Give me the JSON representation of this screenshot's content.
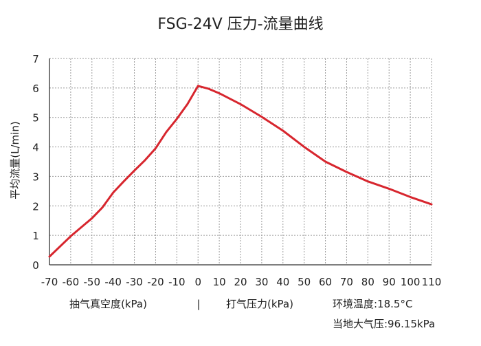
{
  "chart_data": {
    "type": "line",
    "title": "FSG-24V 压力-流量曲线",
    "ylabel": "平均流量(L/min)",
    "x_ticks": [
      "-70",
      "-60",
      "-50",
      "-40",
      "-30",
      "-20",
      "-10",
      "0",
      "10",
      "20",
      "30",
      "40",
      "50",
      "60",
      "70",
      "80",
      "90",
      "100",
      "110"
    ],
    "y_ticks": [
      "0",
      "1",
      "2",
      "3",
      "4",
      "5",
      "6",
      "7"
    ],
    "xlim": [
      -70,
      110
    ],
    "ylim": [
      0,
      7
    ],
    "grid": true,
    "line_color": "#d7262e",
    "series": [
      {
        "x": [
          -70,
          -60,
          -50,
          -45,
          -40,
          -35,
          -30,
          -25,
          -20,
          -15,
          -10,
          -5,
          0,
          5,
          10,
          20,
          30,
          40,
          50,
          60,
          70,
          80,
          90,
          100,
          110
        ],
        "y": [
          0.28,
          0.97,
          1.58,
          1.95,
          2.45,
          2.83,
          3.2,
          3.55,
          3.95,
          4.5,
          4.95,
          5.45,
          6.07,
          5.97,
          5.82,
          5.45,
          5.02,
          4.55,
          4.0,
          3.5,
          3.15,
          2.83,
          2.58,
          2.3,
          2.05
        ]
      }
    ],
    "annotations": {
      "left_label": "抽气真空度(kPa)",
      "separator": "|",
      "right_label": "打气压力(kPa)",
      "temperature": "环境温度:18.5°C",
      "pressure": "当地大气压:96.15kPa"
    }
  }
}
